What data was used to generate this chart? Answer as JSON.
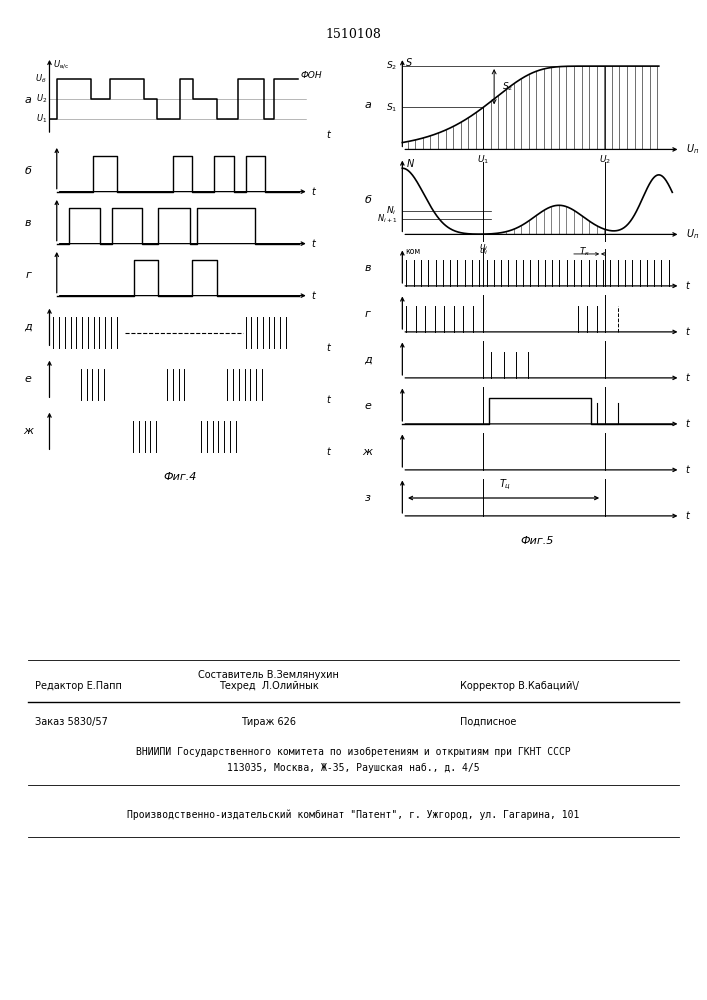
{
  "title": "1510108",
  "fig4_label": "Фиг.4",
  "fig5_label": "Фиг.5",
  "bg_color": "#ffffff",
  "bottom_texts": {
    "line1_center": "Составитель В.Землянухин",
    "line2_left": "Редактор Е.Папп",
    "line2_center": "Техред  Л.Олийнык",
    "line2_right": "Корректор В.Кабаций\\/",
    "line3_left": "Заказ 5830/57",
    "line3_center": "Тираж 626",
    "line3_right": "Подписное",
    "line4": "ВНИИПИ Государственного комитета по изобретениям и открытиям при ГКНТ СССР",
    "line5": "113035, Москва, Ж-35, Раушская наб., д. 4/5",
    "line6": "Производственно-издательский комбинат \"Патент\", г. Ужгород, ул. Гагарина, 101"
  }
}
